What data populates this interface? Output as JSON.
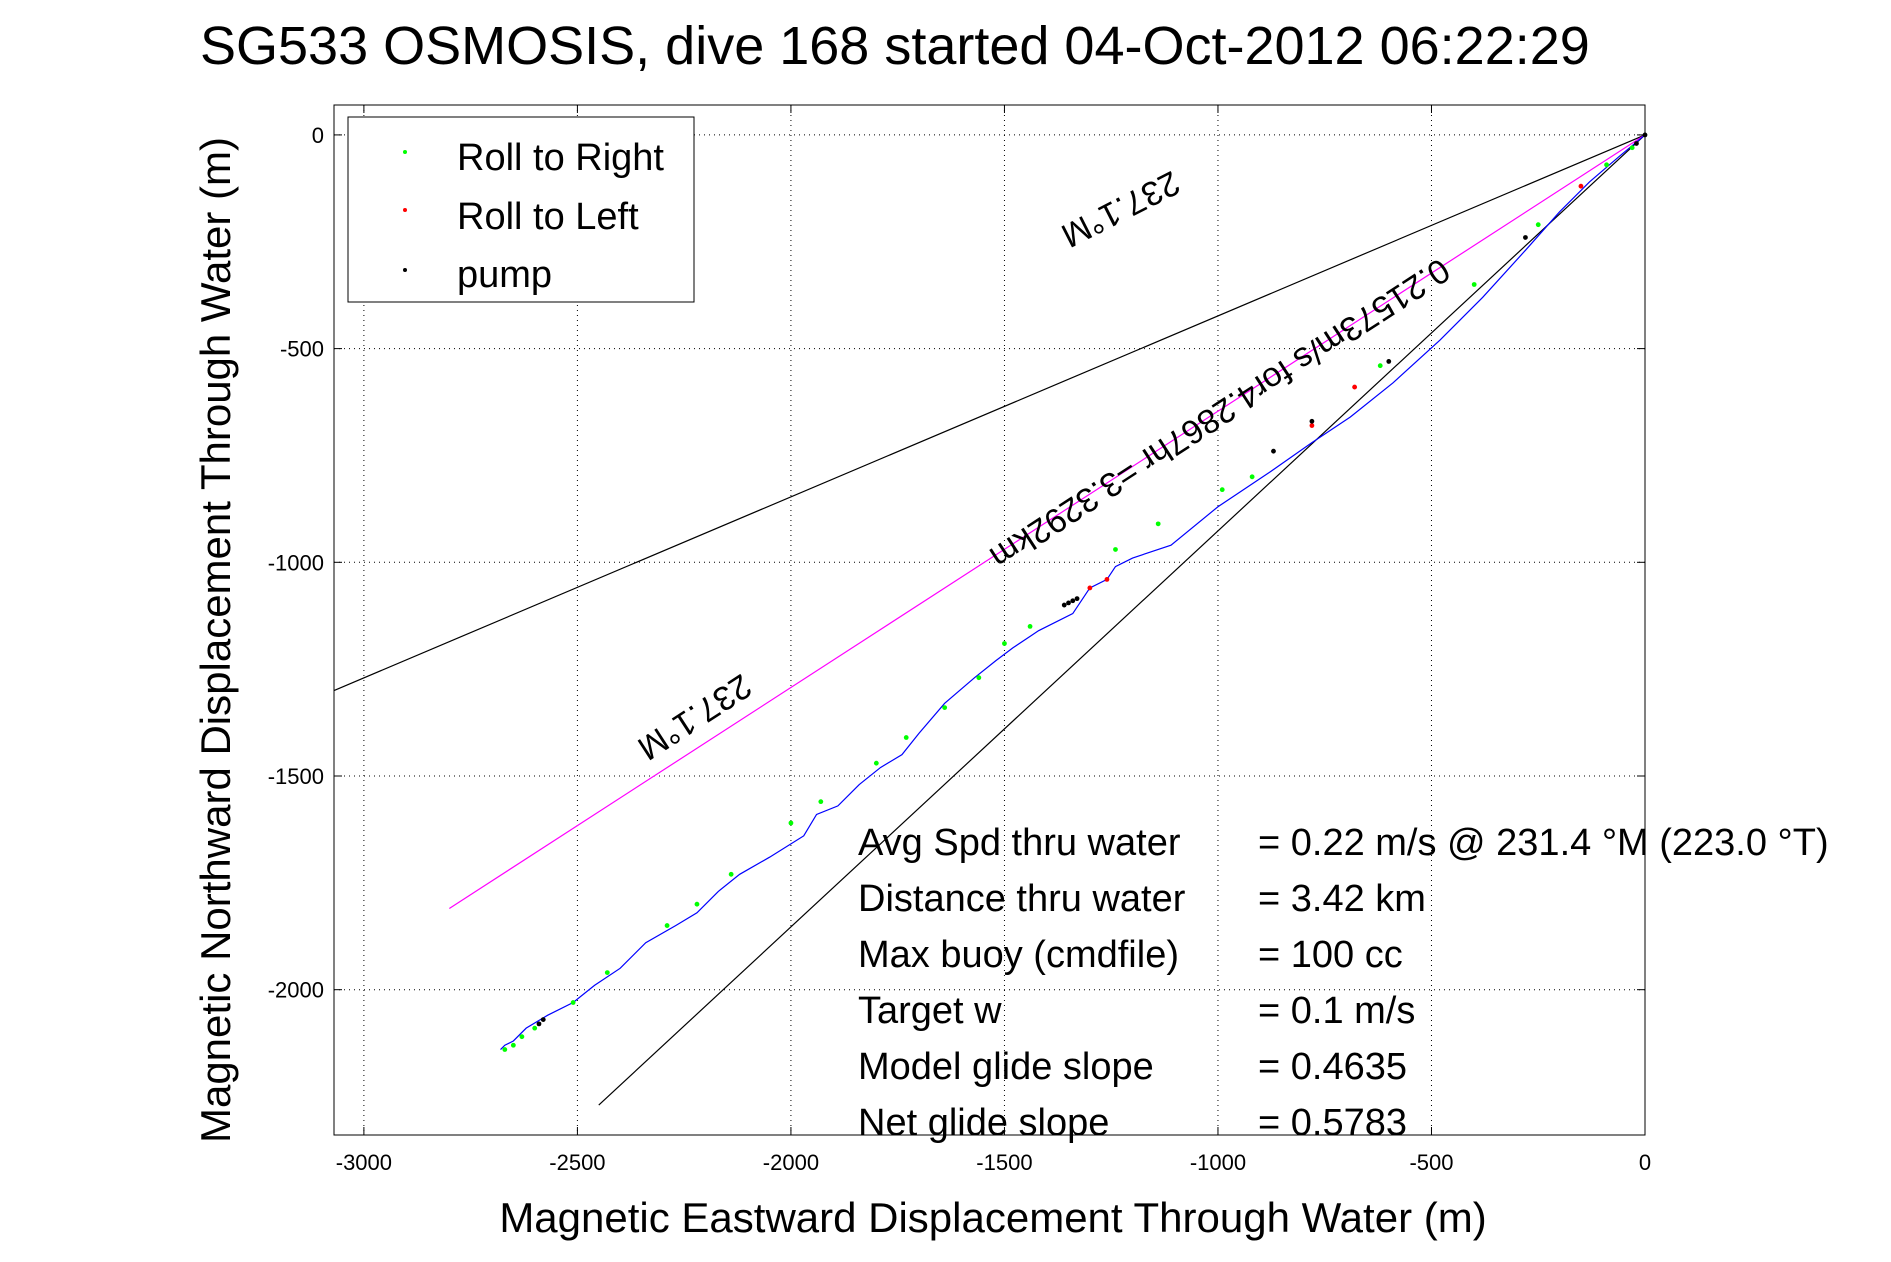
{
  "chart_data": {
    "type": "line",
    "title": "SG533 OSMOSIS, dive 168 started 04-Oct-2012 06:22:29",
    "xlabel": "Magnetic Eastward Displacement Through Water (m)",
    "ylabel": "Magnetic Northward Displacement Through Water (m)",
    "xlim": [
      -3070,
      0
    ],
    "ylim": [
      -2340,
      70
    ],
    "xticks": [
      -3000,
      -2500,
      -2000,
      -1500,
      -1000,
      -500,
      0
    ],
    "yticks": [
      0,
      -500,
      -1000,
      -1500,
      -2000
    ],
    "grid": true,
    "legend": {
      "placement": "top-left",
      "entries": [
        {
          "label": "Roll to Right",
          "color": "#00ff00"
        },
        {
          "label": "Roll to Left",
          "color": "#ff0000"
        },
        {
          "label": "pump",
          "color": "#000000"
        }
      ]
    },
    "track": {
      "color": "#0000ff",
      "x": [
        0,
        -60,
        -130,
        -200,
        -280,
        -380,
        -480,
        -590,
        -690,
        -780,
        -880,
        -1000,
        -1110,
        -1200,
        -1240,
        -1260,
        -1300,
        -1340,
        -1420,
        -1480,
        -1520,
        -1570,
        -1640,
        -1700,
        -1740,
        -1790,
        -1840,
        -1890,
        -1940,
        -1970,
        -2050,
        -2120,
        -2170,
        -2220,
        -2270,
        -2340,
        -2400,
        -2460,
        -2510,
        -2570,
        -2620,
        -2650,
        -2670,
        -2680
      ],
      "y": [
        0,
        -50,
        -110,
        -180,
        -270,
        -380,
        -480,
        -580,
        -660,
        -720,
        -790,
        -870,
        -960,
        -990,
        -1010,
        -1040,
        -1060,
        -1120,
        -1160,
        -1200,
        -1230,
        -1270,
        -1330,
        -1400,
        -1450,
        -1480,
        -1520,
        -1570,
        -1590,
        -1640,
        -1690,
        -1730,
        -1770,
        -1820,
        -1850,
        -1890,
        -1950,
        -1990,
        -2030,
        -2060,
        -2090,
        -2120,
        -2130,
        -2140
      ]
    },
    "roll_right_points": {
      "x": [
        -2670,
        -2650,
        -2630,
        -2600,
        -2510,
        -2430,
        -2290,
        -2220,
        -2140,
        -2000,
        -1930,
        -1800,
        -1730,
        -1640,
        -1560,
        -1500,
        -1440,
        -1240,
        -1140,
        -990,
        -920,
        -620,
        -400,
        -250,
        -90,
        -30
      ],
      "y": [
        -2140,
        -2130,
        -2110,
        -2090,
        -2030,
        -1960,
        -1850,
        -1800,
        -1730,
        -1610,
        -1560,
        -1470,
        -1410,
        -1340,
        -1270,
        -1190,
        -1150,
        -970,
        -910,
        -830,
        -800,
        -540,
        -350,
        -210,
        -70,
        -30
      ]
    },
    "roll_left_points": {
      "x": [
        -1300,
        -1260,
        -780,
        -680,
        -150
      ],
      "y": [
        -1060,
        -1040,
        -680,
        -590,
        -120
      ]
    },
    "pump_points": {
      "x": [
        -2590,
        -2580,
        -1360,
        -1350,
        -1340,
        -1330,
        -870,
        -780,
        -600,
        -280,
        -20,
        0
      ],
      "y": [
        -2080,
        -2070,
        -1100,
        -1095,
        -1090,
        -1085,
        -740,
        -670,
        -530,
        -240,
        -20,
        0
      ]
    },
    "heading_lines": [
      {
        "x": [
          0,
          -3070
        ],
        "y": [
          0,
          -1300
        ],
        "color": "#000000"
      },
      {
        "x": [
          0,
          -2450
        ],
        "y": [
          0,
          -2270
        ],
        "color": "#000000"
      },
      {
        "x": [
          0,
          -2800
        ],
        "y": [
          0,
          -1810
        ],
        "color": "#ff00ff"
      }
    ],
    "line_labels": [
      {
        "text": "237.1°M",
        "x": -1240,
        "y": -150,
        "rotation": 153
      },
      {
        "text": "0.21573m/s for4.2867hr =3.3292km",
        "x": -1010,
        "y": -630,
        "rotation": 147
      },
      {
        "text": "237.1°M",
        "x": -2240,
        "y": -1340,
        "rotation": 147
      }
    ],
    "stats": [
      {
        "label": "Avg Spd thru water",
        "value": "=  0.22 m/s @ 231.4  °M (223.0 °T)"
      },
      {
        "label": "Distance thru water",
        "value": "=  3.42 km"
      },
      {
        "label": "Max buoy (cmdfile)",
        "value": "= 100 cc"
      },
      {
        "label": "Target w",
        "value": "= 0.1 m/s"
      },
      {
        "label": "Model glide slope",
        "value": "= 0.4635"
      },
      {
        "label": "Net glide slope",
        "value": "= 0.5783"
      }
    ]
  }
}
